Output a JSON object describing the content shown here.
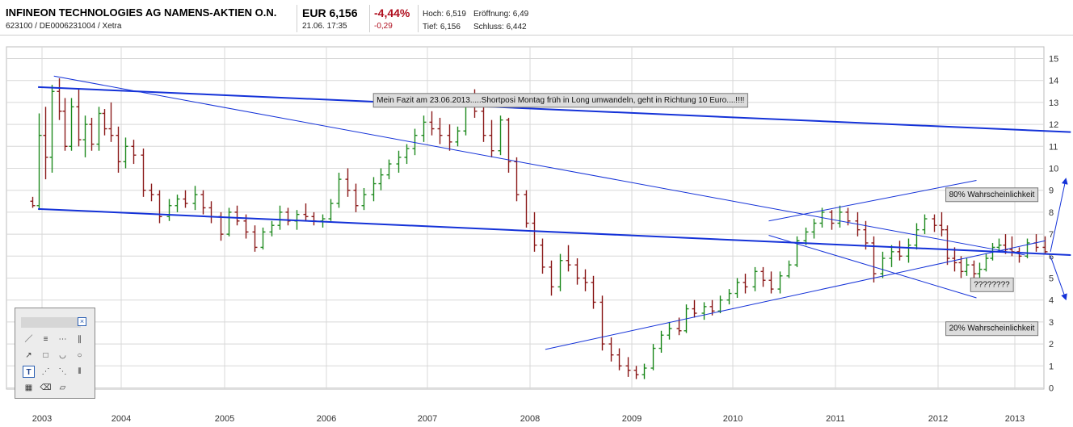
{
  "header": {
    "title": "INFINEON TECHNOLOGIES AG NAMENS-AKTIEN O.N.",
    "subtitle": "623100 / DE0006231004 / Xetra",
    "price": "EUR 6,156",
    "time": "21.06. 17:35",
    "change_pct": "-4,44%",
    "change_abs": "-0,29",
    "hoch": "Hoch: 6,519",
    "eroeffnung": "Eröffnung: 6,49",
    "tief": "Tief: 6,156",
    "schluss": "Schluss: 6,442"
  },
  "toolbox": {
    "close_label": "×",
    "tools": [
      {
        "name": "line-tool-icon",
        "glyph": "／",
        "selected": false
      },
      {
        "name": "fib-tool-icon",
        "glyph": "≡",
        "selected": false
      },
      {
        "name": "hline-tool-icon",
        "glyph": "⋯",
        "selected": false
      },
      {
        "name": "channel-tool-icon",
        "glyph": "∥",
        "selected": false
      },
      {
        "name": "arrow-tool-icon",
        "glyph": "↗",
        "selected": false
      },
      {
        "name": "rectangle-tool-icon",
        "glyph": "□",
        "selected": false
      },
      {
        "name": "arc-tool-icon",
        "glyph": "◡",
        "selected": false
      },
      {
        "name": "circle-tool-icon",
        "glyph": "○",
        "selected": false
      },
      {
        "name": "text-tool-icon",
        "glyph": "T",
        "selected": true
      },
      {
        "name": "fan-tool-icon",
        "glyph": "⋰",
        "selected": false
      },
      {
        "name": "fan-reverse-tool-icon",
        "glyph": "⋱",
        "selected": false
      },
      {
        "name": "vlines-tool-icon",
        "glyph": "⦀",
        "selected": false
      },
      {
        "name": "grid-tool-icon",
        "glyph": "▦",
        "selected": false
      },
      {
        "name": "eraser-tool-icon",
        "glyph": "⌫",
        "selected": false
      },
      {
        "name": "clear-tool-icon",
        "glyph": "▱",
        "selected": false
      }
    ]
  },
  "chart_data": {
    "type": "bar",
    "subtype": "monthly-ohlc",
    "ylim": [
      0,
      15
    ],
    "y_ticks": [
      "0",
      "1",
      "2",
      "3",
      "4",
      "5",
      "6",
      "7",
      "8",
      "9",
      "10",
      "11",
      "12",
      "13",
      "14",
      "15"
    ],
    "x_ticks": [
      "2003",
      "2004",
      "2005",
      "2006",
      "2007",
      "2008",
      "2009",
      "2010",
      "2011",
      "2012",
      "2013"
    ],
    "x_range": [
      2002.8,
      2013.5
    ],
    "grid": true,
    "colors": {
      "up": "#1f8a1f",
      "down": "#8b1a1a",
      "trend": "#1432d8",
      "grid": "#d8d8d8"
    },
    "annotations": [
      {
        "text": "Mein Fazit am 23.06.2013.....Shortposi Montag früh in Long umwandeln, geht in Richtung 10 Euro....!!!!",
        "x": 2008.3,
        "y": 13.15
      },
      {
        "text": "80% Wahrscheinlichkeit",
        "x": 2012.7,
        "y": 8.85
      },
      {
        "text": "????????",
        "x": 2012.7,
        "y": 4.75
      },
      {
        "text": "20% Wahrscheinlichkeit",
        "x": 2012.7,
        "y": 2.75
      }
    ],
    "trend_lines": [
      {
        "points": [
          [
            2002.95,
            13.7
          ],
          [
            2013.55,
            11.65
          ]
        ],
        "width": 2
      },
      {
        "points": [
          [
            2002.95,
            8.15
          ],
          [
            2013.55,
            6.05
          ]
        ],
        "width": 2
      },
      {
        "points": [
          [
            2003.15,
            14.2
          ],
          [
            2013.1,
            6.05
          ]
        ],
        "width": 1
      },
      {
        "points": [
          [
            2008.15,
            1.75
          ],
          [
            2013.3,
            6.7
          ]
        ],
        "width": 1
      },
      {
        "points": [
          [
            2010.35,
            7.6
          ],
          [
            2012.5,
            9.45
          ]
        ],
        "width": 1
      },
      {
        "points": [
          [
            2010.35,
            6.95
          ],
          [
            2012.5,
            4.1
          ]
        ],
        "width": 1
      },
      {
        "points": [
          [
            2013.35,
            6.2
          ],
          [
            2013.5,
            9.5
          ]
        ],
        "width": 1,
        "arrow": true
      },
      {
        "points": [
          [
            2013.35,
            6.0
          ],
          [
            2013.5,
            4.05
          ]
        ],
        "width": 1,
        "arrow": true
      }
    ],
    "bars": [
      {
        "t": 2002.88,
        "o": 8.5,
        "h": 8.7,
        "l": 8.2,
        "c": 8.3
      },
      {
        "t": 2002.96,
        "o": 8.3,
        "h": 12.5,
        "l": 8.1,
        "c": 11.5
      },
      {
        "t": 2003.04,
        "o": 11.5,
        "h": 12.8,
        "l": 9.5,
        "c": 10.5
      },
      {
        "t": 2003.12,
        "o": 10.5,
        "h": 13.8,
        "l": 9.8,
        "c": 13.5
      },
      {
        "t": 2003.21,
        "o": 13.5,
        "h": 14.1,
        "l": 12.2,
        "c": 12.6
      },
      {
        "t": 2003.29,
        "o": 12.6,
        "h": 13.2,
        "l": 10.8,
        "c": 11.0
      },
      {
        "t": 2003.37,
        "o": 11.0,
        "h": 13.2,
        "l": 10.8,
        "c": 12.8
      },
      {
        "t": 2003.46,
        "o": 12.8,
        "h": 13.6,
        "l": 11.0,
        "c": 11.3
      },
      {
        "t": 2003.54,
        "o": 11.3,
        "h": 12.4,
        "l": 10.5,
        "c": 12.0
      },
      {
        "t": 2003.62,
        "o": 12.0,
        "h": 12.3,
        "l": 10.8,
        "c": 11.1
      },
      {
        "t": 2003.71,
        "o": 11.1,
        "h": 12.8,
        "l": 10.8,
        "c": 12.5
      },
      {
        "t": 2003.79,
        "o": 12.5,
        "h": 12.7,
        "l": 11.5,
        "c": 11.8
      },
      {
        "t": 2003.87,
        "o": 11.8,
        "h": 13.0,
        "l": 11.2,
        "c": 11.5
      },
      {
        "t": 2003.96,
        "o": 11.5,
        "h": 11.9,
        "l": 9.8,
        "c": 10.3
      },
      {
        "t": 2004.04,
        "o": 10.3,
        "h": 11.4,
        "l": 10.0,
        "c": 11.0
      },
      {
        "t": 2004.12,
        "o": 11.0,
        "h": 11.3,
        "l": 10.2,
        "c": 10.6
      },
      {
        "t": 2004.21,
        "o": 10.6,
        "h": 10.9,
        "l": 8.7,
        "c": 9.0
      },
      {
        "t": 2004.29,
        "o": 9.0,
        "h": 9.3,
        "l": 8.5,
        "c": 8.8
      },
      {
        "t": 2004.37,
        "o": 8.8,
        "h": 9.0,
        "l": 7.5,
        "c": 7.8
      },
      {
        "t": 2004.46,
        "o": 7.8,
        "h": 8.6,
        "l": 7.6,
        "c": 8.3
      },
      {
        "t": 2004.54,
        "o": 8.3,
        "h": 8.8,
        "l": 8.0,
        "c": 8.6
      },
      {
        "t": 2004.62,
        "o": 8.6,
        "h": 9.0,
        "l": 8.2,
        "c": 8.4
      },
      {
        "t": 2004.71,
        "o": 8.4,
        "h": 9.2,
        "l": 8.1,
        "c": 8.8
      },
      {
        "t": 2004.79,
        "o": 8.8,
        "h": 9.0,
        "l": 7.9,
        "c": 8.2
      },
      {
        "t": 2004.87,
        "o": 8.2,
        "h": 8.5,
        "l": 7.5,
        "c": 7.8
      },
      {
        "t": 2004.96,
        "o": 7.8,
        "h": 8.0,
        "l": 6.7,
        "c": 7.0
      },
      {
        "t": 2005.04,
        "o": 7.0,
        "h": 8.2,
        "l": 6.9,
        "c": 8.0
      },
      {
        "t": 2005.12,
        "o": 8.0,
        "h": 8.3,
        "l": 7.4,
        "c": 7.6
      },
      {
        "t": 2005.21,
        "o": 7.6,
        "h": 7.9,
        "l": 6.8,
        "c": 7.1
      },
      {
        "t": 2005.29,
        "o": 7.1,
        "h": 7.4,
        "l": 6.2,
        "c": 6.4
      },
      {
        "t": 2005.37,
        "o": 6.4,
        "h": 7.3,
        "l": 6.3,
        "c": 7.1
      },
      {
        "t": 2005.46,
        "o": 7.1,
        "h": 7.6,
        "l": 6.9,
        "c": 7.4
      },
      {
        "t": 2005.54,
        "o": 7.4,
        "h": 8.3,
        "l": 7.2,
        "c": 8.0
      },
      {
        "t": 2005.62,
        "o": 8.0,
        "h": 8.2,
        "l": 7.4,
        "c": 7.6
      },
      {
        "t": 2005.71,
        "o": 7.6,
        "h": 8.1,
        "l": 7.2,
        "c": 7.9
      },
      {
        "t": 2005.79,
        "o": 7.9,
        "h": 8.4,
        "l": 7.6,
        "c": 7.8
      },
      {
        "t": 2005.87,
        "o": 7.8,
        "h": 8.0,
        "l": 7.4,
        "c": 7.6
      },
      {
        "t": 2005.96,
        "o": 7.6,
        "h": 7.9,
        "l": 7.3,
        "c": 7.7
      },
      {
        "t": 2006.04,
        "o": 7.7,
        "h": 8.6,
        "l": 7.6,
        "c": 8.4
      },
      {
        "t": 2006.12,
        "o": 8.4,
        "h": 9.8,
        "l": 8.2,
        "c": 9.5
      },
      {
        "t": 2006.21,
        "o": 9.5,
        "h": 10.0,
        "l": 8.7,
        "c": 9.0
      },
      {
        "t": 2006.29,
        "o": 9.0,
        "h": 9.3,
        "l": 8.0,
        "c": 8.3
      },
      {
        "t": 2006.37,
        "o": 8.3,
        "h": 9.1,
        "l": 8.1,
        "c": 8.8
      },
      {
        "t": 2006.46,
        "o": 8.8,
        "h": 9.6,
        "l": 8.5,
        "c": 9.3
      },
      {
        "t": 2006.54,
        "o": 9.3,
        "h": 10.0,
        "l": 9.0,
        "c": 9.7
      },
      {
        "t": 2006.62,
        "o": 9.7,
        "h": 10.4,
        "l": 9.5,
        "c": 10.2
      },
      {
        "t": 2006.71,
        "o": 10.2,
        "h": 10.8,
        "l": 9.8,
        "c": 10.5
      },
      {
        "t": 2006.79,
        "o": 10.5,
        "h": 11.1,
        "l": 10.2,
        "c": 10.9
      },
      {
        "t": 2006.87,
        "o": 10.9,
        "h": 11.8,
        "l": 10.6,
        "c": 11.5
      },
      {
        "t": 2006.96,
        "o": 11.5,
        "h": 12.4,
        "l": 11.2,
        "c": 12.1
      },
      {
        "t": 2007.04,
        "o": 12.1,
        "h": 12.6,
        "l": 11.5,
        "c": 11.8
      },
      {
        "t": 2007.12,
        "o": 11.8,
        "h": 12.3,
        "l": 11.1,
        "c": 11.5
      },
      {
        "t": 2007.21,
        "o": 11.5,
        "h": 12.0,
        "l": 10.8,
        "c": 11.2
      },
      {
        "t": 2007.29,
        "o": 11.2,
        "h": 11.9,
        "l": 11.0,
        "c": 11.7
      },
      {
        "t": 2007.37,
        "o": 11.7,
        "h": 13.2,
        "l": 11.5,
        "c": 12.9
      },
      {
        "t": 2007.46,
        "o": 12.9,
        "h": 13.6,
        "l": 12.3,
        "c": 12.6
      },
      {
        "t": 2007.54,
        "o": 12.6,
        "h": 12.9,
        "l": 11.2,
        "c": 11.5
      },
      {
        "t": 2007.62,
        "o": 11.5,
        "h": 12.2,
        "l": 10.5,
        "c": 10.8
      },
      {
        "t": 2007.71,
        "o": 10.8,
        "h": 12.4,
        "l": 10.6,
        "c": 12.2
      },
      {
        "t": 2007.79,
        "o": 12.2,
        "h": 12.3,
        "l": 9.8,
        "c": 10.3
      },
      {
        "t": 2007.87,
        "o": 10.3,
        "h": 10.5,
        "l": 8.5,
        "c": 8.8
      },
      {
        "t": 2007.96,
        "o": 8.8,
        "h": 9.0,
        "l": 7.3,
        "c": 7.5
      },
      {
        "t": 2008.04,
        "o": 7.5,
        "h": 8.0,
        "l": 6.2,
        "c": 6.5
      },
      {
        "t": 2008.12,
        "o": 6.5,
        "h": 6.8,
        "l": 5.2,
        "c": 5.5
      },
      {
        "t": 2008.21,
        "o": 5.5,
        "h": 5.8,
        "l": 4.2,
        "c": 4.6
      },
      {
        "t": 2008.29,
        "o": 4.6,
        "h": 6.1,
        "l": 4.4,
        "c": 5.8
      },
      {
        "t": 2008.37,
        "o": 5.8,
        "h": 6.5,
        "l": 5.3,
        "c": 5.6
      },
      {
        "t": 2008.46,
        "o": 5.6,
        "h": 5.9,
        "l": 4.7,
        "c": 5.0
      },
      {
        "t": 2008.54,
        "o": 5.0,
        "h": 5.4,
        "l": 4.4,
        "c": 4.8
      },
      {
        "t": 2008.62,
        "o": 4.8,
        "h": 5.1,
        "l": 3.6,
        "c": 3.9
      },
      {
        "t": 2008.71,
        "o": 3.9,
        "h": 4.2,
        "l": 1.7,
        "c": 2.0
      },
      {
        "t": 2008.79,
        "o": 2.0,
        "h": 2.3,
        "l": 1.2,
        "c": 1.5
      },
      {
        "t": 2008.87,
        "o": 1.5,
        "h": 1.8,
        "l": 0.8,
        "c": 1.0
      },
      {
        "t": 2008.96,
        "o": 1.0,
        "h": 1.4,
        "l": 0.5,
        "c": 0.8
      },
      {
        "t": 2009.04,
        "o": 0.8,
        "h": 1.0,
        "l": 0.4,
        "c": 0.6
      },
      {
        "t": 2009.12,
        "o": 0.6,
        "h": 1.1,
        "l": 0.4,
        "c": 0.9
      },
      {
        "t": 2009.21,
        "o": 0.9,
        "h": 2.0,
        "l": 0.8,
        "c": 1.8
      },
      {
        "t": 2009.29,
        "o": 1.8,
        "h": 2.6,
        "l": 1.6,
        "c": 2.4
      },
      {
        "t": 2009.37,
        "o": 2.4,
        "h": 3.0,
        "l": 2.2,
        "c": 2.7
      },
      {
        "t": 2009.46,
        "o": 2.7,
        "h": 3.2,
        "l": 2.4,
        "c": 2.6
      },
      {
        "t": 2009.54,
        "o": 2.6,
        "h": 3.8,
        "l": 2.5,
        "c": 3.6
      },
      {
        "t": 2009.62,
        "o": 3.6,
        "h": 4.0,
        "l": 3.2,
        "c": 3.4
      },
      {
        "t": 2009.71,
        "o": 3.4,
        "h": 3.9,
        "l": 3.1,
        "c": 3.7
      },
      {
        "t": 2009.79,
        "o": 3.7,
        "h": 4.0,
        "l": 3.3,
        "c": 3.5
      },
      {
        "t": 2009.87,
        "o": 3.5,
        "h": 4.2,
        "l": 3.4,
        "c": 4.0
      },
      {
        "t": 2009.96,
        "o": 4.0,
        "h": 4.5,
        "l": 3.8,
        "c": 4.3
      },
      {
        "t": 2010.04,
        "o": 4.3,
        "h": 5.0,
        "l": 4.1,
        "c": 4.8
      },
      {
        "t": 2010.12,
        "o": 4.8,
        "h": 5.2,
        "l": 4.3,
        "c": 4.6
      },
      {
        "t": 2010.21,
        "o": 4.6,
        "h": 5.5,
        "l": 4.4,
        "c": 5.3
      },
      {
        "t": 2010.29,
        "o": 5.3,
        "h": 5.5,
        "l": 4.6,
        "c": 4.9
      },
      {
        "t": 2010.37,
        "o": 4.9,
        "h": 5.3,
        "l": 4.3,
        "c": 4.5
      },
      {
        "t": 2010.46,
        "o": 4.5,
        "h": 5.3,
        "l": 4.3,
        "c": 5.1
      },
      {
        "t": 2010.54,
        "o": 5.1,
        "h": 5.8,
        "l": 5.0,
        "c": 5.6
      },
      {
        "t": 2010.62,
        "o": 5.6,
        "h": 6.9,
        "l": 5.5,
        "c": 6.7
      },
      {
        "t": 2010.71,
        "o": 6.7,
        "h": 7.3,
        "l": 6.5,
        "c": 7.1
      },
      {
        "t": 2010.79,
        "o": 7.1,
        "h": 7.7,
        "l": 6.8,
        "c": 7.5
      },
      {
        "t": 2010.87,
        "o": 7.5,
        "h": 8.2,
        "l": 7.3,
        "c": 8.0
      },
      {
        "t": 2010.96,
        "o": 8.0,
        "h": 8.1,
        "l": 7.2,
        "c": 7.5
      },
      {
        "t": 2011.04,
        "o": 7.5,
        "h": 8.3,
        "l": 7.3,
        "c": 8.0
      },
      {
        "t": 2011.12,
        "o": 8.0,
        "h": 8.2,
        "l": 7.4,
        "c": 7.6
      },
      {
        "t": 2011.21,
        "o": 7.6,
        "h": 8.0,
        "l": 6.9,
        "c": 7.2
      },
      {
        "t": 2011.29,
        "o": 7.2,
        "h": 7.6,
        "l": 6.3,
        "c": 6.6
      },
      {
        "t": 2011.37,
        "o": 6.6,
        "h": 6.9,
        "l": 4.8,
        "c": 5.2
      },
      {
        "t": 2011.46,
        "o": 5.2,
        "h": 6.2,
        "l": 5.0,
        "c": 5.9
      },
      {
        "t": 2011.54,
        "o": 5.9,
        "h": 6.5,
        "l": 5.5,
        "c": 6.2
      },
      {
        "t": 2011.62,
        "o": 6.2,
        "h": 6.7,
        "l": 5.8,
        "c": 6.0
      },
      {
        "t": 2011.71,
        "o": 6.0,
        "h": 6.8,
        "l": 5.7,
        "c": 6.5
      },
      {
        "t": 2011.79,
        "o": 6.5,
        "h": 7.5,
        "l": 6.3,
        "c": 7.2
      },
      {
        "t": 2011.87,
        "o": 7.2,
        "h": 7.9,
        "l": 7.0,
        "c": 7.7
      },
      {
        "t": 2011.96,
        "o": 7.7,
        "h": 7.9,
        "l": 7.1,
        "c": 7.4
      },
      {
        "t": 2012.04,
        "o": 7.4,
        "h": 8.0,
        "l": 6.9,
        "c": 7.2
      },
      {
        "t": 2012.12,
        "o": 7.2,
        "h": 7.4,
        "l": 5.6,
        "c": 5.9
      },
      {
        "t": 2012.21,
        "o": 5.9,
        "h": 6.4,
        "l": 5.3,
        "c": 5.7
      },
      {
        "t": 2012.29,
        "o": 5.7,
        "h": 6.0,
        "l": 5.0,
        "c": 5.3
      },
      {
        "t": 2012.37,
        "o": 5.3,
        "h": 5.9,
        "l": 5.1,
        "c": 5.6
      },
      {
        "t": 2012.46,
        "o": 5.6,
        "h": 5.8,
        "l": 4.9,
        "c": 5.2
      },
      {
        "t": 2012.54,
        "o": 5.2,
        "h": 5.7,
        "l": 4.9,
        "c": 5.4
      },
      {
        "t": 2012.62,
        "o": 5.4,
        "h": 6.1,
        "l": 5.3,
        "c": 5.9
      },
      {
        "t": 2012.71,
        "o": 5.9,
        "h": 6.6,
        "l": 5.8,
        "c": 6.4
      },
      {
        "t": 2012.79,
        "o": 6.4,
        "h": 6.8,
        "l": 6.2,
        "c": 6.5
      },
      {
        "t": 2012.87,
        "o": 6.5,
        "h": 7.0,
        "l": 6.1,
        "c": 6.3
      },
      {
        "t": 2012.96,
        "o": 6.3,
        "h": 6.9,
        "l": 6.0,
        "c": 6.2
      },
      {
        "t": 2013.04,
        "o": 6.2,
        "h": 6.4,
        "l": 5.7,
        "c": 6.0
      },
      {
        "t": 2013.12,
        "o": 6.0,
        "h": 6.8,
        "l": 5.9,
        "c": 6.6
      },
      {
        "t": 2013.21,
        "o": 6.6,
        "h": 7.0,
        "l": 6.2,
        "c": 6.4
      },
      {
        "t": 2013.29,
        "o": 6.4,
        "h": 6.9,
        "l": 6.1,
        "c": 6.2
      }
    ]
  }
}
